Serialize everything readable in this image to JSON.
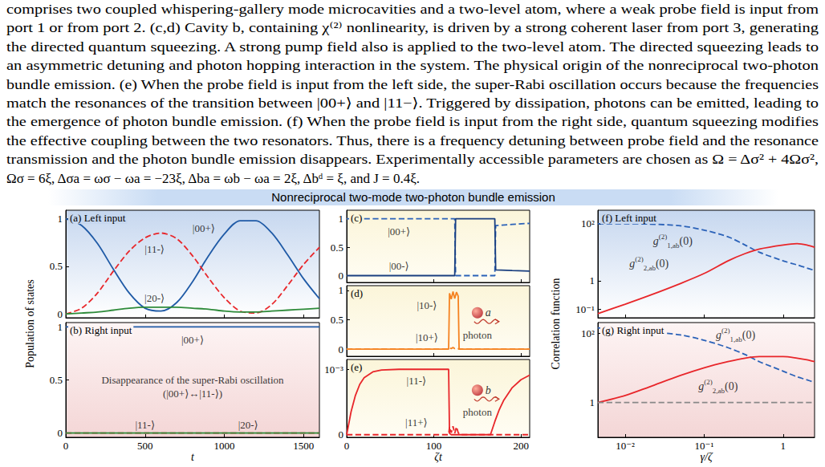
{
  "caption": [
    "comprises two coupled whispering-gallery mode microcavities and a two-level atom, where a weak probe field is input from",
    "port 1 or from port 2. (c,d) Cavity b, containing χ⁽²⁾ nonlinearity, is driven by a strong coherent laser from port 3, generating",
    "the directed quantum squeezing. A strong pump field also is applied to the two-level atom. The directed squeezing leads to",
    "an asymmetric detuning and photon hopping interaction in the system. The physical origin of the nonreciprocal two-photon",
    "bundle emission. (e) When the probe field is input from the left side, the super-Rabi oscillation occurs because the frequencies",
    "match the resonances of the transition between |00+⟩ and |11−⟩. Triggered by dissipation, photons can be emitted, leading to",
    "the emergence of photon bundle emission. (f) When the probe field is input from the right side, quantum squeezing modifies",
    "the effective coupling between the two resonators. Thus, there is a frequency detuning between probe field and the resonance",
    "transmission and the photon bundle emission disappears. Experimentally accessible parameters are chosen as Ω = Δσ² + 4Ωσ²,",
    "Ωσ = 6ξ, Δσa = ωσ − ωa = −23ξ, Δba = ωb − ωa = 2ξ, Δbᵈ = ξ, and J = 0.4ξ."
  ],
  "banner": "Nonreciprocal two-mode two-photon bundle emission",
  "chart_data": [
    {
      "type": "line",
      "label": "(a) Left input",
      "ylabel": "Population of states",
      "tick_labels": "y",
      "x": [
        0,
        100,
        200,
        300,
        400,
        500,
        600,
        700,
        800,
        900,
        1000,
        1100,
        1200,
        1300,
        1400,
        1500,
        1600
      ],
      "xlim": [
        0,
        1600
      ],
      "xticks": [
        0,
        500,
        1000,
        1500
      ],
      "ylim": [
        -0.04,
        1.09
      ],
      "yticks": [
        0,
        0.5,
        1
      ],
      "series": [
        {
          "color": "#1f5aa6",
          "line_style": "solid",
          "values": [
            1,
            0.93,
            0.74,
            0.47,
            0.22,
            0.06,
            0.03,
            0.12,
            0.34,
            0.61,
            0.84,
            0.98,
            0.98,
            0.85,
            0.62,
            0.37,
            0.16
          ]
        },
        {
          "color": "#e8262a",
          "line_style": "dashed",
          "values": [
            0,
            0.06,
            0.22,
            0.45,
            0.66,
            0.8,
            0.85,
            0.79,
            0.61,
            0.38,
            0.17,
            0.03,
            0.01,
            0.1,
            0.3,
            0.52,
            0.7
          ]
        },
        {
          "color": "#2e8b3a",
          "line_style": "solid",
          "values": [
            0,
            0.01,
            0.02,
            0.04,
            0.06,
            0.07,
            0.07,
            0.07,
            0.06,
            0.05,
            0.03,
            0.02,
            0.02,
            0.03,
            0.04,
            0.05,
            0.06
          ]
        }
      ],
      "annotations": [
        {
          "text": "|00+⟩",
          "x": 870,
          "y": 0.9
        },
        {
          "text": "|11-⟩",
          "x": 560,
          "y": 0.68
        },
        {
          "text": "|20-⟩",
          "x": 560,
          "y": 0.17
        }
      ]
    },
    {
      "type": "line",
      "label": "(b) Right input",
      "xlabel": "t",
      "x": [
        0,
        100,
        200,
        300,
        400,
        500,
        600,
        700,
        800,
        900,
        1000,
        1100,
        1200,
        1300,
        1400,
        1500,
        1600
      ],
      "xlim": [
        0,
        1600
      ],
      "xticks": [
        0,
        500,
        1000,
        1500
      ],
      "ylim": [
        -0.04,
        1.04
      ],
      "yticks": [
        0,
        0.5,
        1
      ],
      "series": [
        {
          "color": "#1f5aa6",
          "line_style": "solid",
          "values": [
            1,
            1,
            1,
            1,
            1,
            1,
            1,
            1,
            1,
            1,
            1,
            1,
            1,
            1,
            1,
            1,
            1
          ]
        },
        {
          "color": "#e8262a",
          "line_style": "dashed",
          "values": [
            0,
            0,
            0,
            0,
            0,
            0,
            0,
            0,
            0,
            0,
            0,
            0,
            0,
            0,
            0,
            0,
            0
          ]
        },
        {
          "color": "#2e8b3a",
          "line_style": "solid",
          "values": [
            0,
            0,
            0,
            0,
            0,
            0,
            0,
            0,
            0,
            0,
            0,
            0,
            0,
            0,
            0,
            0,
            0
          ]
        }
      ],
      "annotations": [
        {
          "text": "|00+⟩",
          "x": 800,
          "y": 0.88
        },
        {
          "text": "Disappearance of the super-Rabi oscillation",
          "x": 800,
          "y": 0.5
        },
        {
          "text": "(|00+⟩↔|11-⟩)",
          "x": 800,
          "y": 0.37
        },
        {
          "text": "|11-⟩",
          "x": 500,
          "y": 0.08
        },
        {
          "text": "|20-⟩",
          "x": 1150,
          "y": 0.08
        }
      ]
    },
    {
      "type": "line",
      "label": "(c)",
      "tick_labels": "y",
      "x": [
        0,
        50,
        100,
        124,
        125,
        170,
        171,
        190,
        210
      ],
      "xlim": [
        0,
        210
      ],
      "xticks": [
        0,
        100,
        200
      ],
      "ylim": [
        -0.12,
        1.15
      ],
      "yticks": [
        0,
        0.5,
        1
      ],
      "series": [
        {
          "color": "#2b62b8",
          "line_style": "dashed",
          "values": [
            1,
            1,
            1,
            1,
            0,
            0,
            0.88,
            0.9,
            0.92
          ]
        },
        {
          "color": "#1a3f80",
          "line_style": "solid",
          "values": [
            0,
            0,
            0,
            0,
            1,
            1,
            0.1,
            0.09,
            0.08
          ]
        }
      ],
      "annotations": [
        {
          "text": "|00+⟩",
          "x": 60,
          "y": 0.78
        },
        {
          "text": "|00-⟩",
          "x": 60,
          "y": 0.17
        }
      ]
    },
    {
      "type": "line",
      "label": "(d)",
      "tick_labels": "y",
      "x": [
        0,
        50,
        100,
        117,
        118,
        120,
        122,
        124,
        126,
        128,
        129,
        170,
        210
      ],
      "xlim": [
        0,
        210
      ],
      "xticks": [
        0,
        100,
        200
      ],
      "ylim": [
        -0.12,
        1.08
      ],
      "yticks": [
        0,
        0.5,
        1
      ],
      "series": [
        {
          "color": "#f58220",
          "line_style": "solid",
          "values": [
            0,
            0,
            0,
            0,
            0.95,
            0.85,
            0.98,
            0.86,
            0.97,
            0.9,
            0,
            0,
            0
          ]
        },
        {
          "color": "#f58220",
          "line_style": "dashed",
          "values": [
            0,
            0,
            0,
            0,
            0.02,
            0.01,
            0.03,
            0.01,
            0.02,
            0.01,
            0,
            0,
            0
          ]
        }
      ],
      "annotations": [
        {
          "text": "|10-⟩",
          "x": 92,
          "y": 0.75
        },
        {
          "text": "|10+⟩",
          "x": 92,
          "y": 0.2
        }
      ],
      "photons": [
        {
          "letter": "a",
          "text": "photon",
          "x": 150,
          "y": 0.62
        }
      ]
    },
    {
      "type": "line",
      "label": "(e)",
      "xlabel": "ζt",
      "x": [
        0,
        5,
        10,
        15,
        20,
        30,
        40,
        60,
        100,
        117,
        118,
        120,
        122,
        124,
        126,
        128,
        130,
        165,
        170,
        175,
        180,
        190,
        200,
        210
      ],
      "xlim": [
        0,
        210
      ],
      "xticks": [
        0,
        100,
        200
      ],
      "ylim": [
        -4e-05,
        0.00115
      ],
      "yticks": [
        0,
        {
          "value": 0.001,
          "label": "10⁻³"
        }
      ],
      "series": [
        {
          "color": "#e8262a",
          "line_style": "solid",
          "values": [
            0,
            0.00035,
            0.0006,
            0.00077,
            0.00087,
            0.00096,
            0.00099,
            0.001,
            0.001,
            0.001,
            2e-05,
            0,
            0,
            0,
            0,
            0,
            0,
            0,
            0.0002,
            0.00038,
            0.00052,
            0.00072,
            0.00084,
            0.00091
          ]
        },
        {
          "color": "#e8262a",
          "line_style": "dashed",
          "values": [
            0,
            0,
            0,
            0,
            0,
            0,
            0,
            0,
            0,
            0,
            0.00012,
            3e-05,
            0.00013,
            2e-05,
            0.00012,
            3e-05,
            0,
            0,
            0,
            0,
            0,
            0,
            0,
            0
          ]
        }
      ],
      "annotations": [
        {
          "text": "|11-⟩",
          "x": 80,
          "y": 0.00082
        },
        {
          "text": "|11+⟩",
          "x": 80,
          "y": 0.00019
        }
      ],
      "photons": [
        {
          "letter": "b",
          "text": "photon",
          "x": 150,
          "y": 0.00068
        }
      ]
    },
    {
      "type": "line",
      "log": true,
      "label": "(f) Left input",
      "ylabel": "Correlation function",
      "tick_labels": "y",
      "x": [
        0.0045,
        0.01,
        0.02,
        0.05,
        0.1,
        0.2,
        0.33,
        0.5,
        1,
        1.5,
        2,
        2.5
      ],
      "xlim": [
        0.0045,
        2.5
      ],
      "xticks": [
        {
          "value": 0.01,
          "label": "10⁻²"
        },
        {
          "value": 0.1,
          "label": "10⁻¹"
        },
        1
      ],
      "ylim": [
        0.05,
        300
      ],
      "yticks": [
        {
          "value": 0.1,
          "label": "10⁻¹"
        },
        1,
        {
          "value": 100,
          "label": "10²"
        }
      ],
      "series": [
        {
          "color": "#2b62b8",
          "line_style": "dashed",
          "values": [
            100,
            100,
            98,
            85,
            60,
            35,
            18,
            10,
            5,
            3.6,
            2.8,
            2.3
          ]
        },
        {
          "color": "#e8262a",
          "line_style": "solid",
          "values": [
            0.07,
            0.15,
            0.3,
            0.8,
            1.8,
            5,
            9,
            13,
            18,
            20,
            18,
            15
          ]
        }
      ],
      "annotations": [
        {
          "text": {
            "base": "g",
            "sup": "(2)",
            "sub": "1,ab",
            "tail": "(0)"
          },
          "x": 0.04,
          "y": 25
        },
        {
          "text": {
            "base": "g",
            "sup": "(2)",
            "sub": "2,ab",
            "tail": "(0)"
          },
          "x": 0.02,
          "y": 4
        }
      ]
    },
    {
      "type": "line",
      "log": true,
      "label": "(g) Right input",
      "xlabel": "γ/ζ",
      "x": [
        0.0045,
        0.01,
        0.02,
        0.05,
        0.1,
        0.2,
        0.33,
        0.5,
        1,
        1.5,
        2,
        2.5
      ],
      "xlim": [
        0.0045,
        2.5
      ],
      "xticks": [
        {
          "value": 0.01,
          "label": "10⁻²"
        },
        {
          "value": 0.1,
          "label": "10⁻¹"
        },
        1
      ],
      "ylim": [
        0.1,
        200
      ],
      "yticks": [
        1,
        {
          "value": 100,
          "label": "10²"
        }
      ],
      "series": [
        {
          "color": "#2b62b8",
          "line_style": "dashed",
          "values": [
            140,
            125,
            110,
            88,
            62,
            38,
            24,
            15,
            8,
            5.5,
            4.5,
            3.8
          ]
        },
        {
          "color": "#e8262a",
          "line_style": "solid",
          "values": [
            1,
            1.6,
            2.8,
            6,
            10,
            15,
            19,
            21,
            21,
            19,
            17,
            15
          ]
        },
        {
          "color": "#888888",
          "line_style": "dashed",
          "values": [
            1,
            1,
            1,
            1,
            1,
            1,
            1,
            1,
            1,
            1,
            1,
            1
          ]
        }
      ],
      "annotations": [
        {
          "text": {
            "base": "g",
            "sup": "(2)",
            "sub": "1,ab",
            "tail": "(0)"
          },
          "x": 0.25,
          "y": 90
        },
        {
          "text": {
            "base": "g",
            "sup": "(2)",
            "sub": "2,ab",
            "tail": "(0)"
          },
          "x": 0.15,
          "y": 3
        }
      ]
    }
  ]
}
